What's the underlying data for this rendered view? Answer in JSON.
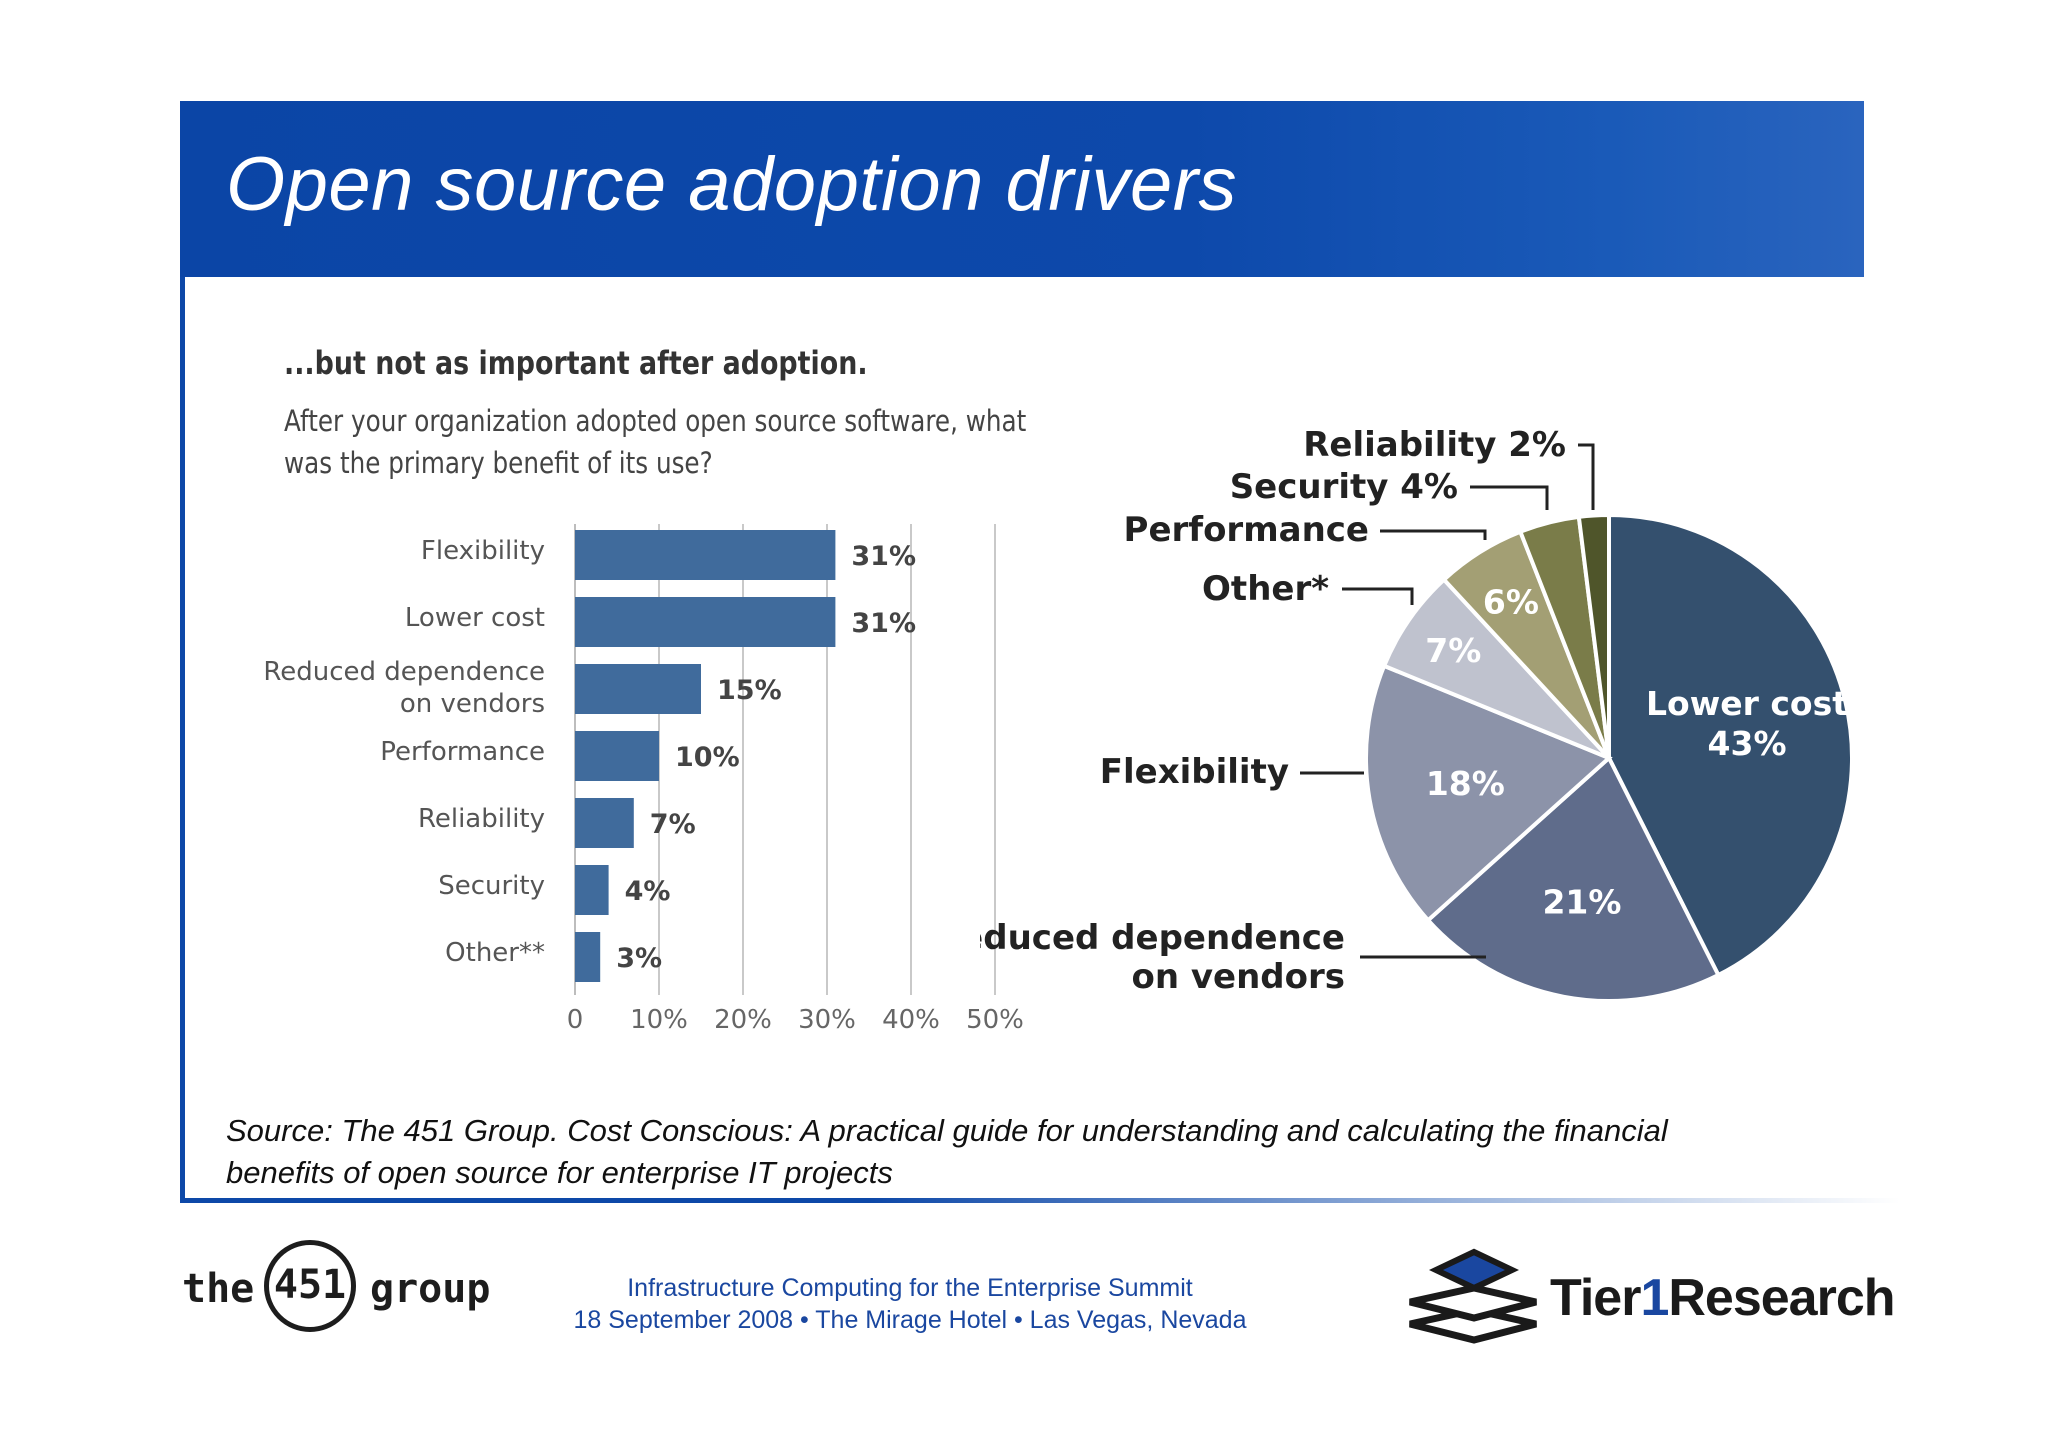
{
  "slide": {
    "title": "Open source adoption drivers",
    "source_note": "Source: The 451 Group. Cost Conscious: A practical guide for understanding and calculating the financial benefits of open source for enterprise IT projects"
  },
  "chart_heading": "...but not as important after adoption.",
  "chart_question": "After your organization adopted open source software, what was the primary benefit of its use?",
  "chart_data": [
    {
      "type": "bar",
      "orientation": "horizontal",
      "categories": [
        "Flexibility",
        "Lower cost",
        "Reduced dependence on vendors",
        "Performance",
        "Reliability",
        "Security",
        "Other**"
      ],
      "values": [
        31,
        31,
        15,
        10,
        7,
        4,
        3
      ],
      "data_labels": [
        "31%",
        "31%",
        "15%",
        "10%",
        "7%",
        "4%",
        "3%"
      ],
      "xlim": [
        0,
        50
      ],
      "xticks": [
        "0",
        "10%",
        "20%",
        "30%",
        "40%",
        "50%"
      ],
      "grid": true,
      "color": "#406b9c"
    },
    {
      "type": "pie",
      "slices": [
        {
          "label": "Lower cost",
          "value": 43,
          "text": "43%",
          "color": "#34506e"
        },
        {
          "label": "Reduced dependence on vendors",
          "value": 21,
          "text": "21%",
          "color": "#5f6c8b"
        },
        {
          "label": "Flexibility",
          "value": 18,
          "text": "18%",
          "color": "#8c93a9"
        },
        {
          "label": "Other*",
          "value": 7,
          "text": "7%",
          "color": "#bfc2ce"
        },
        {
          "label": "Performance",
          "value": 6,
          "text": "6%",
          "color": "#a39f74"
        },
        {
          "label": "Security",
          "value": 4,
          "text": "4%",
          "color": "#7a7c49"
        },
        {
          "label": "Reliability",
          "value": 2,
          "text": "2%",
          "color": "#4f552a"
        }
      ],
      "callouts": {
        "lower_cost": "Lower cost",
        "reliability": "Reliability  2%",
        "security": "Security  4%",
        "performance": "Performance",
        "other": "Other*",
        "flexibility": "Flexibility",
        "reduced_line1": "Reduced dependence",
        "reduced_line2": "on vendors"
      }
    }
  ],
  "footer": {
    "logo_451": {
      "left": "the",
      "middle": "451",
      "right": "group"
    },
    "event_name": "Infrastructure Computing for the Enterprise Summit",
    "event_details": "18 September 2008 • The Mirage Hotel • Las Vegas, Nevada",
    "tier1_logo": {
      "part1": "Tier",
      "part2": "1",
      "part3": "Research"
    }
  }
}
